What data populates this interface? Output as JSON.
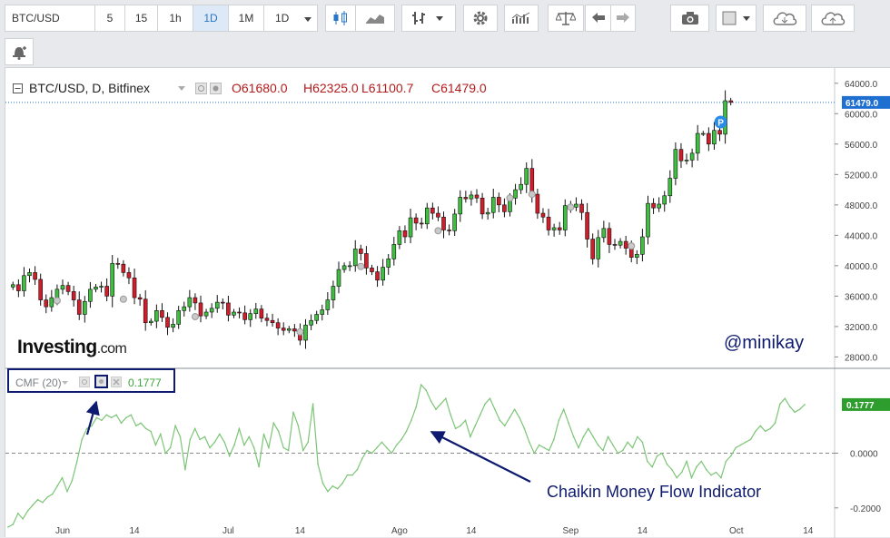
{
  "toolbar": {
    "symbol": "BTC/USD",
    "intervals": [
      "5",
      "15",
      "1h",
      "1D",
      "1M",
      "1D"
    ],
    "active_interval": "1D",
    "tools": [
      "candles-icon",
      "area-chart-icon",
      "bars-icon",
      "gear-icon",
      "indicators-icon",
      "compare-icon",
      "undo-icon",
      "redo-icon",
      "camera-icon",
      "color-swatch-icon",
      "cloud-download-icon",
      "cloud-upload-icon"
    ],
    "alert_tool": "alert-bell-icon"
  },
  "header": {
    "title": "BTC/USD, D, Bitfinex",
    "open": "O61680.0",
    "high": "H62325.0",
    "low": "L61100.7",
    "close": "C61479.0"
  },
  "indicator": {
    "label": "CMF (20)",
    "value": "0.1777"
  },
  "watermark": "@minikay",
  "annotation": "Chaikin Money Flow Indicator",
  "logo": {
    "main": "Investing",
    "suffix": ".com"
  },
  "last_price_label": "61479.0",
  "marker_label": "P",
  "colors": {
    "up": "#3fbf3f",
    "down": "#d11c2a",
    "cmf_line": "#7cc576",
    "annotation": "#0d1a6f",
    "price_label": "#1e6fd0"
  },
  "chart_data": [
    {
      "type": "candlestick",
      "title": "BTC/USD, D, Bitfinex",
      "y_ticks": [
        64000,
        60000,
        56000,
        52000,
        48000,
        44000,
        40000,
        36000,
        32000,
        28000
      ],
      "y_tick_labels": [
        "64000.0",
        "60000.0",
        "56000.0",
        "52000.0",
        "48000.0",
        "44000.0",
        "40000.0",
        "36000.0",
        "32000.0",
        "28000.0"
      ],
      "ylim": [
        26500,
        66000
      ],
      "x_tick_labels": [
        "Jun",
        "14",
        "Jul",
        "14",
        "Ago",
        "14",
        "Sep",
        "14",
        "Oct",
        "14"
      ],
      "x_tick_days": [
        0,
        13,
        30,
        43,
        61,
        74,
        92,
        105,
        122,
        135
      ],
      "last_price": 61479.0,
      "close_series": [
        {
          "d": -9,
          "c": 37500
        },
        {
          "d": -8,
          "c": 36700
        },
        {
          "d": -7,
          "c": 38700
        },
        {
          "d": -6,
          "c": 39100
        },
        {
          "d": -5,
          "c": 38200
        },
        {
          "d": -4,
          "c": 35500
        },
        {
          "d": -3,
          "c": 34600
        },
        {
          "d": -2,
          "c": 35800
        },
        {
          "d": -1,
          "c": 36900
        },
        {
          "d": 0,
          "c": 37400
        },
        {
          "d": 1,
          "c": 36600
        },
        {
          "d": 2,
          "c": 35500
        },
        {
          "d": 3,
          "c": 33600
        },
        {
          "d": 4,
          "c": 35300
        },
        {
          "d": 5,
          "c": 36900
        },
        {
          "d": 6,
          "c": 37200
        },
        {
          "d": 7,
          "c": 37300
        },
        {
          "d": 8,
          "c": 36000
        },
        {
          "d": 9,
          "c": 40300
        },
        {
          "d": 10,
          "c": 40200
        },
        {
          "d": 11,
          "c": 39100
        },
        {
          "d": 12,
          "c": 38400
        },
        {
          "d": 13,
          "c": 35800
        },
        {
          "d": 14,
          "c": 35600
        },
        {
          "d": 15,
          "c": 32500
        },
        {
          "d": 16,
          "c": 32700
        },
        {
          "d": 17,
          "c": 34100
        },
        {
          "d": 18,
          "c": 33200
        },
        {
          "d": 19,
          "c": 31900
        },
        {
          "d": 20,
          "c": 32300
        },
        {
          "d": 21,
          "c": 34100
        },
        {
          "d": 22,
          "c": 34600
        },
        {
          "d": 23,
          "c": 35800
        },
        {
          "d": 24,
          "c": 35100
        },
        {
          "d": 25,
          "c": 33400
        },
        {
          "d": 26,
          "c": 33900
        },
        {
          "d": 27,
          "c": 34400
        },
        {
          "d": 28,
          "c": 35200
        },
        {
          "d": 29,
          "c": 35100
        },
        {
          "d": 30,
          "c": 33500
        },
        {
          "d": 31,
          "c": 33900
        },
        {
          "d": 32,
          "c": 33800
        },
        {
          "d": 33,
          "c": 32900
        },
        {
          "d": 34,
          "c": 33700
        },
        {
          "d": 35,
          "c": 34300
        },
        {
          "d": 36,
          "c": 33100
        },
        {
          "d": 37,
          "c": 32800
        },
        {
          "d": 38,
          "c": 32500
        },
        {
          "d": 39,
          "c": 31800
        },
        {
          "d": 40,
          "c": 31500
        },
        {
          "d": 41,
          "c": 31700
        },
        {
          "d": 42,
          "c": 31400
        },
        {
          "d": 43,
          "c": 30200
        },
        {
          "d": 44,
          "c": 32200
        },
        {
          "d": 45,
          "c": 32800
        },
        {
          "d": 46,
          "c": 33600
        },
        {
          "d": 47,
          "c": 34200
        },
        {
          "d": 48,
          "c": 35500
        },
        {
          "d": 49,
          "c": 37300
        },
        {
          "d": 50,
          "c": 39500
        },
        {
          "d": 51,
          "c": 40000
        },
        {
          "d": 52,
          "c": 40000
        },
        {
          "d": 53,
          "c": 42200
        },
        {
          "d": 54,
          "c": 41600
        },
        {
          "d": 55,
          "c": 39700
        },
        {
          "d": 56,
          "c": 39200
        },
        {
          "d": 57,
          "c": 38100
        },
        {
          "d": 58,
          "c": 39800
        },
        {
          "d": 59,
          "c": 40900
        },
        {
          "d": 60,
          "c": 42800
        },
        {
          "d": 61,
          "c": 44600
        },
        {
          "d": 62,
          "c": 43800
        },
        {
          "d": 63,
          "c": 46300
        },
        {
          "d": 64,
          "c": 45600
        },
        {
          "d": 65,
          "c": 45500
        },
        {
          "d": 66,
          "c": 47600
        },
        {
          "d": 67,
          "c": 46900
        },
        {
          "d": 68,
          "c": 46400
        },
        {
          "d": 69,
          "c": 44700
        },
        {
          "d": 70,
          "c": 44600
        },
        {
          "d": 71,
          "c": 46800
        },
        {
          "d": 72,
          "c": 49000
        },
        {
          "d": 73,
          "c": 48800
        },
        {
          "d": 74,
          "c": 49300
        },
        {
          "d": 75,
          "c": 48900
        },
        {
          "d": 76,
          "c": 46800
        },
        {
          "d": 77,
          "c": 47000
        },
        {
          "d": 78,
          "c": 49000
        },
        {
          "d": 79,
          "c": 48000
        },
        {
          "d": 80,
          "c": 47100
        },
        {
          "d": 81,
          "c": 48900
        },
        {
          "d": 82,
          "c": 50000
        },
        {
          "d": 83,
          "c": 50700
        },
        {
          "d": 84,
          "c": 52800
        },
        {
          "d": 85,
          "c": 49400
        },
        {
          "d": 86,
          "c": 46900
        },
        {
          "d": 87,
          "c": 46400
        },
        {
          "d": 88,
          "c": 44700
        },
        {
          "d": 89,
          "c": 45000
        },
        {
          "d": 90,
          "c": 44700
        },
        {
          "d": 91,
          "c": 47900
        },
        {
          "d": 92,
          "c": 47700
        },
        {
          "d": 93,
          "c": 48100
        },
        {
          "d": 94,
          "c": 47000
        },
        {
          "d": 95,
          "c": 43500
        },
        {
          "d": 96,
          "c": 40900
        },
        {
          "d": 97,
          "c": 43700
        },
        {
          "d": 98,
          "c": 44900
        },
        {
          "d": 99,
          "c": 42800
        },
        {
          "d": 100,
          "c": 42700
        },
        {
          "d": 101,
          "c": 43200
        },
        {
          "d": 102,
          "c": 42300
        },
        {
          "d": 103,
          "c": 41100
        },
        {
          "d": 104,
          "c": 41500
        },
        {
          "d": 105,
          "c": 43800
        },
        {
          "d": 106,
          "c": 48200
        },
        {
          "d": 107,
          "c": 47600
        },
        {
          "d": 108,
          "c": 48100
        },
        {
          "d": 109,
          "c": 49200
        },
        {
          "d": 110,
          "c": 51500
        },
        {
          "d": 111,
          "c": 55300
        },
        {
          "d": 112,
          "c": 53800
        },
        {
          "d": 113,
          "c": 53900
        },
        {
          "d": 114,
          "c": 54800
        },
        {
          "d": 115,
          "c": 57400
        },
        {
          "d": 116,
          "c": 57400
        },
        {
          "d": 117,
          "c": 56000
        },
        {
          "d": 118,
          "c": 57800
        },
        {
          "d": 119,
          "c": 57300
        },
        {
          "d": 120,
          "c": 61700
        },
        {
          "d": 121,
          "c": 61479
        }
      ]
    },
    {
      "type": "line",
      "title": "CMF (20)",
      "y_ticks": [
        0.0,
        -0.2
      ],
      "y_tick_labels": [
        "0.0000",
        "-0.2000"
      ],
      "ylim": [
        -0.31,
        0.31
      ],
      "zero_line": true,
      "last_value": 0.1777,
      "series": [
        {
          "values": [
            -0.27,
            -0.26,
            -0.22,
            -0.24,
            -0.21,
            -0.19,
            -0.17,
            -0.18,
            -0.16,
            -0.15,
            -0.12,
            -0.09,
            -0.14,
            -0.1,
            -0.03,
            0.05,
            0.09,
            0.1,
            0.13,
            0.12,
            0.14,
            0.13,
            0.14,
            0.11,
            0.13,
            0.14,
            0.1,
            0.11,
            0.09,
            0.08,
            0.03,
            0.07,
            0.0,
            0.02,
            0.1,
            0.06,
            -0.06,
            0.05,
            0.09,
            0.05,
            0.06,
            0.02,
            0.04,
            0.07,
            0.04,
            -0.01,
            0.03,
            0.09,
            0.03,
            0.06,
            0.02,
            -0.05,
            0.07,
            0.02,
            0.11,
            0.08,
            0.02,
            0.01,
            0.15,
            0.1,
            0.01,
            0.04,
            0.18,
            -0.04,
            -0.11,
            -0.14,
            -0.12,
            -0.13,
            -0.11,
            -0.08,
            -0.08,
            -0.06,
            -0.02,
            0.01,
            0.0,
            0.02,
            0.04,
            0.02,
            0.0,
            0.03,
            0.05,
            0.08,
            0.12,
            0.17,
            0.25,
            0.23,
            0.19,
            0.16,
            0.18,
            0.2,
            0.14,
            0.09,
            0.1,
            0.12,
            0.06,
            0.1,
            0.14,
            0.18,
            0.2,
            0.16,
            0.12,
            0.1,
            0.13,
            0.16,
            0.13,
            0.09,
            0.04,
            0.0,
            0.03,
            0.02,
            0.01,
            0.05,
            0.12,
            0.16,
            0.11,
            0.06,
            0.02,
            0.06,
            0.09,
            0.06,
            0.03,
            0.01,
            0.06,
            0.03,
            0.0,
            0.01,
            0.04,
            0.02,
            0.06,
            0.04,
            -0.03,
            -0.05,
            -0.01,
            0.0,
            -0.04,
            -0.06,
            -0.09,
            -0.07,
            -0.03,
            -0.09,
            -0.05,
            -0.03,
            -0.06,
            -0.08,
            -0.07,
            -0.09,
            -0.03,
            -0.01,
            0.02,
            0.03,
            0.04,
            0.05,
            0.08,
            0.1,
            0.08,
            0.09,
            0.11,
            0.18,
            0.2,
            0.17,
            0.15,
            0.16,
            0.1777
          ]
        }
      ]
    }
  ]
}
